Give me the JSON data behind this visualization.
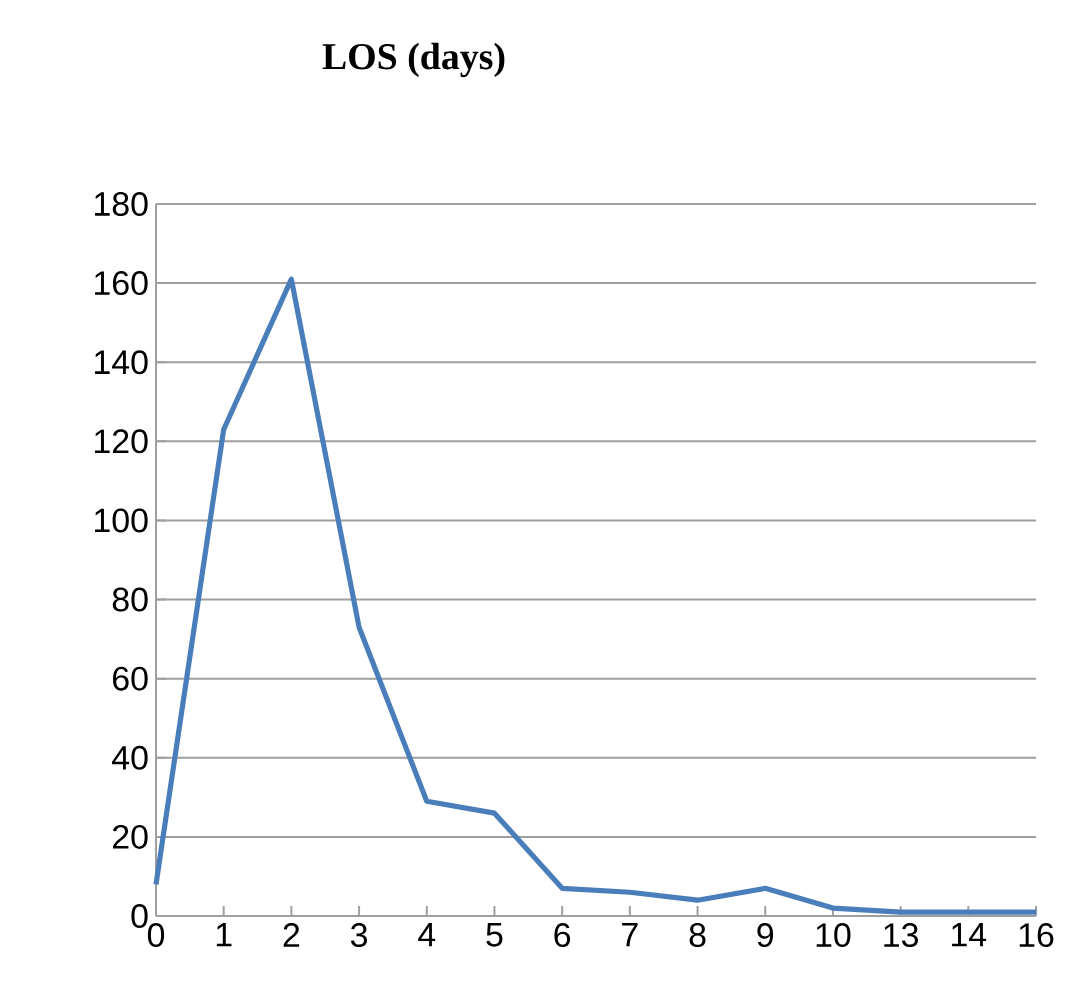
{
  "chart_data": {
    "type": "line",
    "title": "LOS (days)",
    "categories": [
      "0",
      "1",
      "2",
      "3",
      "4",
      "5",
      "6",
      "7",
      "8",
      "9",
      "10",
      "13",
      "14",
      "16"
    ],
    "series": [
      {
        "color": "#4a7ebb",
        "values": [
          8,
          123,
          161,
          73,
          29,
          26,
          7,
          6,
          4,
          7,
          2,
          1,
          1,
          1
        ]
      }
    ],
    "ylim": [
      0,
      180
    ],
    "yticks": [
      0,
      20,
      40,
      60,
      80,
      100,
      120,
      140,
      160,
      180
    ],
    "grid": "y"
  }
}
